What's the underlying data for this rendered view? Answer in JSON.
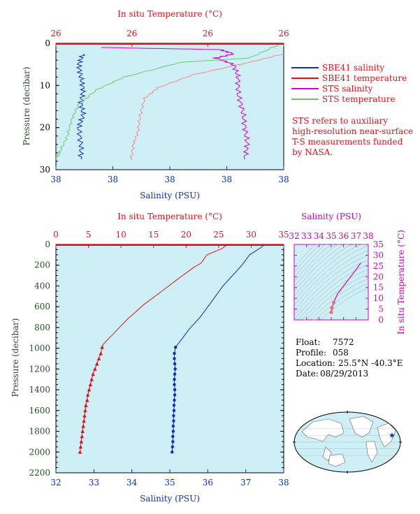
{
  "colors": {
    "plot_bg": "#cfeff7",
    "salinity": "#0a2ec0",
    "temperature": "#e0101a",
    "sts_salinity": "#d400d0",
    "sts_temperature": "#66cc66",
    "pressure_axis": "#2a4a2a",
    "ts_axis": "#c800c0"
  },
  "top_chart": {
    "top_axis_title": "In situ Temperature (°C)",
    "bottom_axis_title": "Salinity (PSU)",
    "y_axis_title": "Pressure (decibar)",
    "top_ticks": [
      "26",
      "26",
      "26",
      "26"
    ],
    "bottom_ticks": [
      "38",
      "38",
      "38",
      "38",
      "38"
    ],
    "y_ticks": [
      "0",
      "10",
      "20",
      "30"
    ],
    "legend": [
      {
        "label": "SBE41 salinity",
        "color": "#0a2ec0"
      },
      {
        "label": "SBE41 temperature",
        "color": "#e0101a"
      },
      {
        "label": "STS salinity",
        "color": "#d400d0"
      },
      {
        "label": "STS temperature",
        "color": "#66cc66"
      }
    ],
    "note": [
      "STS refers to auxiliary",
      "high-resolution near-surface",
      "T-S measurements funded",
      "by NASA."
    ]
  },
  "main_chart": {
    "top_axis_title": "In situ Temperature (°C)",
    "bottom_axis_title": "Salinity (PSU)",
    "y_axis_title": "Pressure (decibar)",
    "top_ticks": [
      "0",
      "5",
      "10",
      "15",
      "20",
      "25",
      "30",
      "35"
    ],
    "bottom_ticks": [
      "32",
      "33",
      "34",
      "35",
      "36",
      "37",
      "38"
    ],
    "y_ticks": [
      "0",
      "200",
      "400",
      "600",
      "800",
      "1000",
      "1200",
      "1400",
      "1600",
      "1800",
      "2000",
      "2200"
    ]
  },
  "ts_chart": {
    "top_axis_title": "Salinity (PSU)",
    "right_axis_title": "In situ Temperature (°C)",
    "top_ticks": [
      "32",
      "33",
      "34",
      "35",
      "36",
      "37",
      "38"
    ],
    "right_ticks": [
      "35",
      "30",
      "25",
      "20",
      "15",
      "10",
      "5",
      "0"
    ]
  },
  "float_info": {
    "float_label": "Float:",
    "float_value": "7572",
    "profile_label": "Profile:",
    "profile_value": "058",
    "location_label": "Location:",
    "location_value": "25.5°N  -40.3°E",
    "date_label": "Date:",
    "date_value": "08/29/2013"
  },
  "chart_data": [
    {
      "type": "line",
      "title": "",
      "xlabel": "Salinity (PSU)",
      "x2label": "In situ Temperature (°C)",
      "ylabel": "Pressure (decibar)",
      "ylim": [
        30,
        0
      ],
      "series": [
        {
          "name": "SBE41 salinity",
          "axis": "salinity",
          "points": [
            [
              0.12,
              2.5
            ],
            [
              0.1,
              5
            ],
            [
              0.11,
              8
            ],
            [
              0.12,
              11
            ],
            [
              0.11,
              14
            ],
            [
              0.12,
              17
            ],
            [
              0.1,
              20
            ],
            [
              0.11,
              24
            ],
            [
              0.11,
              27.5
            ]
          ]
        },
        {
          "name": "SBE41 temperature",
          "axis": "temperature",
          "points": [
            [
              1.0,
              2.5
            ],
            [
              0.85,
              4.5
            ],
            [
              0.6,
              7.5
            ],
            [
              0.45,
              10.5
            ],
            [
              0.39,
              13
            ],
            [
              0.37,
              17
            ],
            [
              0.36,
              21
            ],
            [
              0.34,
              24
            ],
            [
              0.33,
              27.8
            ]
          ]
        },
        {
          "name": "STS salinity",
          "axis": "salinity",
          "points": [
            [
              0.2,
              1
            ],
            [
              0.72,
              1.5
            ],
            [
              0.78,
              2.5
            ],
            [
              0.7,
              3.5
            ],
            [
              0.78,
              5
            ],
            [
              0.8,
              8
            ],
            [
              0.8,
              12
            ],
            [
              0.82,
              16
            ],
            [
              0.83,
              20
            ],
            [
              0.84,
              24
            ],
            [
              0.83,
              27.5
            ]
          ]
        },
        {
          "name": "STS temperature",
          "axis": "temperature",
          "points": [
            [
              0.98,
              0.3
            ],
            [
              0.85,
              3.5
            ],
            [
              0.55,
              4.5
            ],
            [
              0.3,
              8
            ],
            [
              0.18,
              11
            ],
            [
              0.1,
              14.5
            ],
            [
              0.07,
              18
            ],
            [
              0.05,
              22
            ],
            [
              0.02,
              25.5
            ],
            [
              0.0,
              27.5
            ]
          ]
        }
      ]
    },
    {
      "type": "line",
      "title": "",
      "xlabel": "Salinity (PSU)",
      "x2label": "In situ Temperature (°C)",
      "ylabel": "Pressure (decibar)",
      "xlim": [
        32,
        38
      ],
      "x2lim": [
        0,
        35
      ],
      "ylim": [
        2200,
        0
      ],
      "series": [
        {
          "name": "Salinity",
          "axis": "salinity",
          "points": [
            [
              37.5,
              0
            ],
            [
              37.4,
              30
            ],
            [
              37.1,
              100
            ],
            [
              36.9,
              200
            ],
            [
              36.7,
              280
            ],
            [
              36.4,
              400
            ],
            [
              36.1,
              550
            ],
            [
              35.8,
              700
            ],
            [
              35.5,
              820
            ],
            [
              35.3,
              920
            ],
            [
              35.15,
              990
            ],
            [
              35.12,
              1050
            ],
            [
              35.12,
              1100
            ],
            [
              35.13,
              1150
            ],
            [
              35.14,
              1200
            ],
            [
              35.13,
              1250
            ],
            [
              35.12,
              1300
            ],
            [
              35.12,
              1350
            ],
            [
              35.13,
              1400
            ],
            [
              35.13,
              1450
            ],
            [
              35.12,
              1500
            ],
            [
              35.11,
              1550
            ],
            [
              35.11,
              1600
            ],
            [
              35.1,
              1650
            ],
            [
              35.1,
              1700
            ],
            [
              35.09,
              1750
            ],
            [
              35.09,
              1800
            ],
            [
              35.08,
              1850
            ],
            [
              35.08,
              1900
            ],
            [
              35.07,
              1950
            ],
            [
              35.06,
              2000
            ]
          ]
        },
        {
          "name": "Temperature",
          "axis": "temperature",
          "points": [
            [
              26.4,
              0
            ],
            [
              25.5,
              40
            ],
            [
              23.2,
              100
            ],
            [
              22.3,
              180
            ],
            [
              21.2,
              220
            ],
            [
              19,
              320
            ],
            [
              16.5,
              440
            ],
            [
              13.5,
              580
            ],
            [
              11,
              720
            ],
            [
              9,
              850
            ],
            [
              7.3,
              960
            ],
            [
              7.1,
              990
            ],
            [
              6.9,
              1050
            ],
            [
              6.6,
              1100
            ],
            [
              6.3,
              1150
            ],
            [
              6.0,
              1200
            ],
            [
              5.7,
              1250
            ],
            [
              5.5,
              1300
            ],
            [
              5.3,
              1350
            ],
            [
              5.1,
              1400
            ],
            [
              4.9,
              1450
            ],
            [
              4.8,
              1500
            ],
            [
              4.6,
              1550
            ],
            [
              4.5,
              1600
            ],
            [
              4.4,
              1650
            ],
            [
              4.3,
              1700
            ],
            [
              4.2,
              1750
            ],
            [
              4.1,
              1800
            ],
            [
              4.0,
              1850
            ],
            [
              3.9,
              1900
            ],
            [
              3.8,
              1950
            ],
            [
              3.7,
              2000
            ]
          ]
        }
      ]
    },
    {
      "type": "line",
      "title": "",
      "xlabel": "Salinity (PSU)",
      "ylabel": "In situ Temperature (°C)",
      "xlim": [
        32,
        38
      ],
      "ylim": [
        0,
        35
      ],
      "series": [
        {
          "name": "T-S",
          "points": [
            [
              35.0,
              3.5
            ],
            [
              35.05,
              5.5
            ],
            [
              35.2,
              8
            ],
            [
              35.5,
              12
            ],
            [
              35.9,
              15
            ],
            [
              36.3,
              18
            ],
            [
              36.7,
              21
            ],
            [
              37.1,
              24
            ],
            [
              37.4,
              26.5
            ]
          ]
        }
      ]
    }
  ]
}
